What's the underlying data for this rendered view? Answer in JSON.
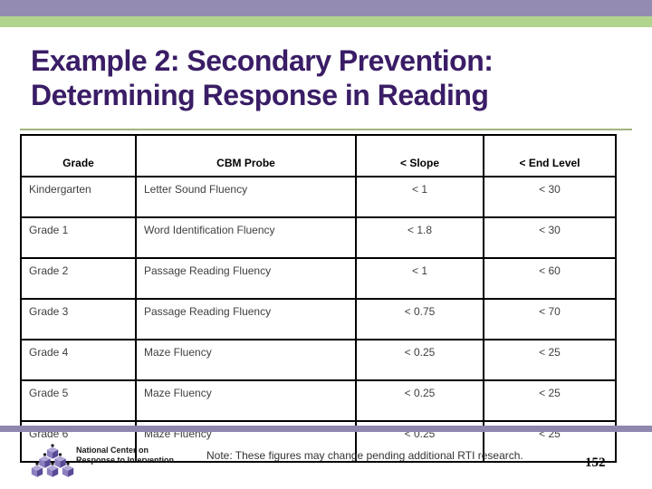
{
  "slide": {
    "title": {
      "line1": "Example 2: Secondary Prevention:",
      "line2": "Determining Response in Reading"
    },
    "table": {
      "headers": [
        "Grade",
        "CBM Probe",
        "< Slope",
        "< End Level"
      ],
      "rows": [
        [
          "Kindergarten",
          "Letter Sound Fluency",
          "< 1",
          "< 30"
        ],
        [
          "Grade 1",
          "Word Identification Fluency",
          "< 1.8",
          "< 30"
        ],
        [
          "Grade 2",
          "Passage Reading Fluency",
          "< 1",
          "< 60"
        ],
        [
          "Grade 3",
          "Passage Reading Fluency",
          "< 0.75",
          "< 70"
        ],
        [
          "Grade 4",
          "Maze Fluency",
          "< 0.25",
          "< 25"
        ],
        [
          "Grade 5",
          "Maze Fluency",
          "< 0.25",
          "< 25"
        ],
        [
          "Grade 6",
          "Maze Fluency",
          "< 0.25",
          "< 25"
        ]
      ]
    },
    "footer": {
      "org_line1": "National Center on",
      "org_line2": "Response to Intervention",
      "note": "Note: These figures may change pending additional RTI research.",
      "page_number": "152"
    },
    "colors": {
      "top_bar_purple": "#938bb2",
      "top_bar_green": "#b1d48e",
      "title_text": "#3a1d66",
      "divider_green": "#a2b37f",
      "bottom_bar_purple": "#8f87ae",
      "table_border": "#000000",
      "logo_purple_light": "#b3a9d9",
      "logo_purple_mid": "#8c7fc0",
      "logo_purple_dark": "#5a4a96"
    }
  }
}
